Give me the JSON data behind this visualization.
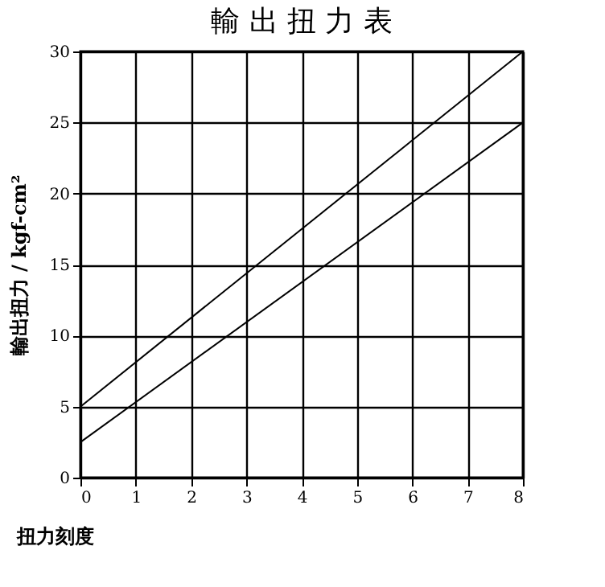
{
  "chart_data": {
    "type": "line",
    "title": "輸 出 扭 力 表",
    "xlabel": "扭力刻度",
    "ylabel": "輸出扭力 / kgf-cm²",
    "x": [
      0,
      8
    ],
    "series": [
      {
        "color": "#000000",
        "values": [
          5,
          30
        ]
      },
      {
        "color": "#000000",
        "values": [
          2.5,
          25
        ]
      }
    ],
    "xlim": [
      0,
      8
    ],
    "xticks": [
      0,
      1,
      2,
      3,
      4,
      5,
      6,
      7,
      8
    ],
    "ylim": [
      0,
      30
    ],
    "yticks": [
      0,
      5,
      10,
      15,
      20,
      25,
      30
    ],
    "grid": true,
    "legend": false,
    "marker": "none",
    "line_style": "solid"
  }
}
